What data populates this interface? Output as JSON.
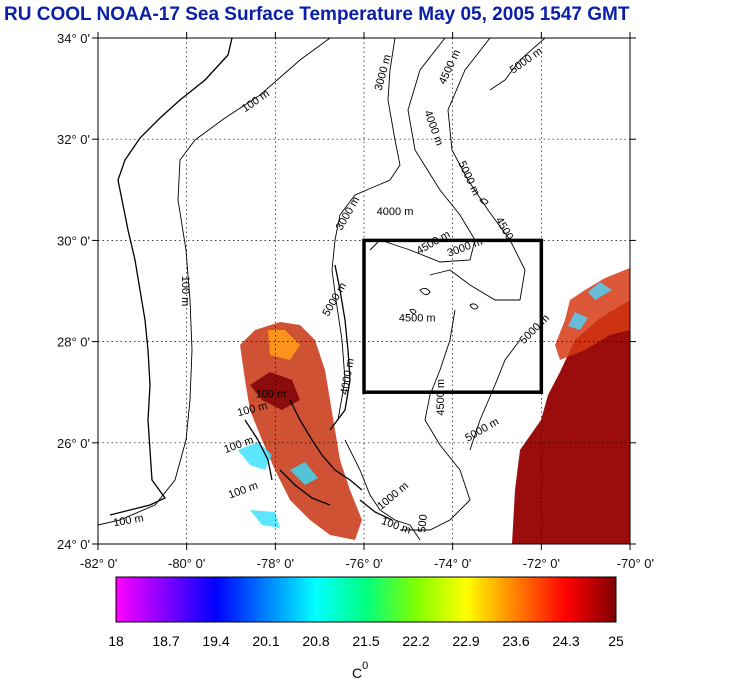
{
  "title": "RU COOL  NOAA-17 Sea Surface Temperature May 05, 2005 1547 GMT",
  "map": {
    "lon_range": [
      -82,
      -70
    ],
    "lat_range": [
      24,
      34
    ],
    "lat_ticks": [
      {
        "value": 34,
        "label": "34° 0'"
      },
      {
        "value": 32,
        "label": "32° 0'"
      },
      {
        "value": 30,
        "label": "30° 0'"
      },
      {
        "value": 28,
        "label": "28° 0'"
      },
      {
        "value": 26,
        "label": "26° 0'"
      },
      {
        "value": 24,
        "label": "24° 0'"
      }
    ],
    "lon_ticks": [
      {
        "value": -82,
        "label": "-82° 0'"
      },
      {
        "value": -80,
        "label": "-80° 0'"
      },
      {
        "value": -78,
        "label": "-78° 0'"
      },
      {
        "value": -76,
        "label": "-76° 0'"
      },
      {
        "value": -74,
        "label": "-74° 0'"
      },
      {
        "value": -72,
        "label": "-72° 0'"
      },
      {
        "value": -70,
        "label": "-70° 0'"
      }
    ],
    "focus_box": {
      "lon_min": -76,
      "lon_max": -72,
      "lat_min": 27,
      "lat_max": 30
    },
    "contour_labels": [
      {
        "text": "100 m",
        "lon": -78.4,
        "lat": 32.7,
        "angle": -35
      },
      {
        "text": "100 m",
        "lon": -80.1,
        "lat": 29.0,
        "angle": 90
      },
      {
        "text": "100 m",
        "lon": -78.1,
        "lat": 26.9,
        "angle": 0
      },
      {
        "text": "100 m",
        "lon": -78.5,
        "lat": 26.6,
        "angle": -15
      },
      {
        "text": "100 m",
        "lon": -78.8,
        "lat": 25.9,
        "angle": -20
      },
      {
        "text": "100 m",
        "lon": -78.7,
        "lat": 25.0,
        "angle": -20
      },
      {
        "text": "100 m",
        "lon": -81.3,
        "lat": 24.4,
        "angle": -10
      },
      {
        "text": "100 m",
        "lon": -75.3,
        "lat": 24.3,
        "angle": 20
      },
      {
        "text": "3000 m",
        "lon": -75.5,
        "lat": 33.3,
        "angle": -75
      },
      {
        "text": "3000 m",
        "lon": -76.3,
        "lat": 30.5,
        "angle": -60
      },
      {
        "text": "3000 m",
        "lon": -73.7,
        "lat": 29.8,
        "angle": -20
      },
      {
        "text": "4500 m",
        "lon": -74.0,
        "lat": 33.4,
        "angle": -65
      },
      {
        "text": "4000 m",
        "lon": -74.5,
        "lat": 32.2,
        "angle": 70
      },
      {
        "text": "5000 m",
        "lon": -72.3,
        "lat": 33.5,
        "angle": -35
      },
      {
        "text": "5000 m",
        "lon": -73.7,
        "lat": 31.2,
        "angle": 65
      },
      {
        "text": "4500",
        "lon": -72.9,
        "lat": 30.2,
        "angle": 60
      },
      {
        "text": "4000 m",
        "lon": -75.3,
        "lat": 30.5,
        "angle": 0
      },
      {
        "text": "4500 m",
        "lon": -74.4,
        "lat": 29.9,
        "angle": -30
      },
      {
        "text": "4500 m",
        "lon": -74.8,
        "lat": 28.4,
        "angle": 0
      },
      {
        "text": "4500 m",
        "lon": -74.2,
        "lat": 26.9,
        "angle": -90
      },
      {
        "text": "5000 m",
        "lon": -72.1,
        "lat": 28.2,
        "angle": -45
      },
      {
        "text": "5000 m",
        "lon": -73.3,
        "lat": 26.2,
        "angle": -30
      },
      {
        "text": "4000 m",
        "lon": -76.3,
        "lat": 27.3,
        "angle": -80
      },
      {
        "text": "5000 m",
        "lon": -76.6,
        "lat": 28.8,
        "angle": -60
      },
      {
        "text": "1000 m",
        "lon": -75.3,
        "lat": 24.9,
        "angle": -40
      },
      {
        "text": "500",
        "lon": -74.6,
        "lat": 24.4,
        "angle": -85
      }
    ]
  },
  "colorbar": {
    "tick_labels": [
      "18",
      "18.7",
      "19.4",
      "20.1",
      "20.8",
      "21.5",
      "22.2",
      "22.9",
      "23.6",
      "24.3",
      "25"
    ],
    "min": 18,
    "max": 25,
    "stops": [
      "#ff00ff",
      "#7f00ff",
      "#0000ff",
      "#0080ff",
      "#00ffff",
      "#00ff80",
      "#80ff00",
      "#ffff00",
      "#ff8000",
      "#ff0000",
      "#800000"
    ],
    "unit_label": "C",
    "unit_superscript": "0"
  },
  "colors": {
    "title": "#0a1fa8",
    "frame": "#000000",
    "grid": "#000000",
    "warm_sst": "#9b0d0d"
  }
}
